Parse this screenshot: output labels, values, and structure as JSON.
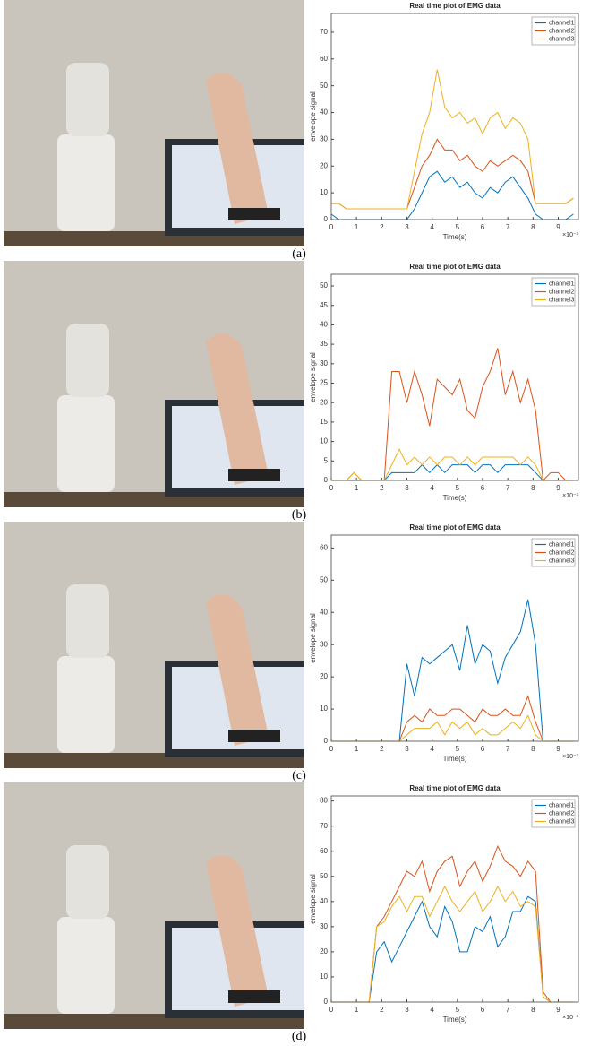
{
  "captions": [
    "(a)",
    "(b)",
    "(c)",
    "(d)"
  ],
  "chart_data": [
    {
      "type": "line",
      "title": "Real time plot of EMG data",
      "x_label": "Time(s)",
      "y_label": "envelope signal",
      "x_multiplier_label": "×10⁻³",
      "x": [
        0,
        0.3,
        0.6,
        0.9,
        1.2,
        1.5,
        1.8,
        2.1,
        2.4,
        2.7,
        3.0,
        3.3,
        3.6,
        3.9,
        4.2,
        4.5,
        4.8,
        5.1,
        5.4,
        5.7,
        6.0,
        6.3,
        6.6,
        6.9,
        7.2,
        7.5,
        7.8,
        8.1,
        8.4,
        8.7,
        9.0,
        9.3,
        9.6
      ],
      "xlim": [
        0,
        9.8
      ],
      "xticks": [
        0,
        1,
        2,
        3,
        4,
        5,
        6,
        7,
        8,
        9
      ],
      "ylim": [
        0,
        77
      ],
      "yticks": [
        0,
        10,
        20,
        30,
        40,
        50,
        60,
        70
      ],
      "legend": "top-right",
      "series": [
        {
          "name": "channel1",
          "color": "#0072bd",
          "values": [
            2,
            0,
            0,
            0,
            0,
            0,
            0,
            0,
            0,
            0,
            0,
            4,
            10,
            16,
            18,
            14,
            16,
            12,
            14,
            10,
            8,
            12,
            10,
            14,
            16,
            12,
            8,
            2,
            0,
            0,
            0,
            0,
            2
          ]
        },
        {
          "name": "channel2",
          "color": "#d95319",
          "values": [
            6,
            6,
            4,
            4,
            4,
            4,
            4,
            4,
            4,
            4,
            4,
            12,
            20,
            24,
            30,
            26,
            26,
            22,
            24,
            20,
            18,
            22,
            20,
            22,
            24,
            22,
            18,
            6,
            6,
            6,
            6,
            6,
            8
          ]
        },
        {
          "name": "channel3",
          "color": "#edb120",
          "values": [
            6,
            6,
            4,
            4,
            4,
            4,
            4,
            4,
            4,
            4,
            4,
            18,
            32,
            40,
            56,
            42,
            38,
            40,
            36,
            38,
            32,
            38,
            40,
            34,
            38,
            36,
            30,
            6,
            6,
            6,
            6,
            6,
            8
          ]
        }
      ]
    },
    {
      "type": "line",
      "title": "Real time plot of EMG data",
      "x_label": "Time(s)",
      "y_label": "envelope signal",
      "x_multiplier_label": "×10⁻³",
      "x": [
        0,
        0.3,
        0.6,
        0.9,
        1.2,
        1.5,
        1.8,
        2.1,
        2.4,
        2.7,
        3.0,
        3.3,
        3.6,
        3.9,
        4.2,
        4.5,
        4.8,
        5.1,
        5.4,
        5.7,
        6.0,
        6.3,
        6.6,
        6.9,
        7.2,
        7.5,
        7.8,
        8.1,
        8.4,
        8.7,
        9.0,
        9.3,
        9.6
      ],
      "xlim": [
        0,
        9.8
      ],
      "xticks": [
        0,
        1,
        2,
        3,
        4,
        5,
        6,
        7,
        8,
        9
      ],
      "ylim": [
        0,
        53
      ],
      "yticks": [
        0,
        5,
        10,
        15,
        20,
        25,
        30,
        35,
        40,
        45,
        50
      ],
      "legend": "top-right",
      "series": [
        {
          "name": "channel1",
          "color": "#0072bd",
          "values": [
            0,
            0,
            0,
            0,
            0,
            0,
            0,
            0,
            2,
            2,
            2,
            2,
            4,
            2,
            4,
            2,
            4,
            4,
            4,
            2,
            4,
            4,
            2,
            4,
            4,
            4,
            4,
            2,
            0,
            0,
            0,
            0,
            0
          ]
        },
        {
          "name": "channel2",
          "color": "#d95319",
          "values": [
            0,
            0,
            0,
            2,
            0,
            0,
            0,
            0,
            28,
            28,
            20,
            28,
            22,
            14,
            26,
            24,
            22,
            26,
            18,
            16,
            24,
            28,
            34,
            22,
            28,
            20,
            26,
            18,
            0,
            2,
            2,
            0,
            0
          ]
        },
        {
          "name": "channel3",
          "color": "#edb120",
          "values": [
            0,
            0,
            0,
            2,
            0,
            0,
            0,
            0,
            4,
            8,
            4,
            6,
            4,
            6,
            4,
            6,
            6,
            4,
            6,
            4,
            6,
            6,
            6,
            6,
            6,
            4,
            6,
            4,
            0,
            0,
            0,
            0,
            0
          ]
        }
      ]
    },
    {
      "type": "line",
      "title": "Real time plot of EMG data",
      "x_label": "Time(s)",
      "y_label": "envelope signal",
      "x_multiplier_label": "×10⁻³",
      "x": [
        0,
        0.3,
        0.6,
        0.9,
        1.2,
        1.5,
        1.8,
        2.1,
        2.4,
        2.7,
        3.0,
        3.3,
        3.6,
        3.9,
        4.2,
        4.5,
        4.8,
        5.1,
        5.4,
        5.7,
        6.0,
        6.3,
        6.6,
        6.9,
        7.2,
        7.5,
        7.8,
        8.1,
        8.4,
        8.7,
        9.0,
        9.3,
        9.6
      ],
      "xlim": [
        0,
        9.8
      ],
      "xticks": [
        0,
        1,
        2,
        3,
        4,
        5,
        6,
        7,
        8,
        9
      ],
      "ylim": [
        0,
        64
      ],
      "yticks": [
        0,
        10,
        20,
        30,
        40,
        50,
        60
      ],
      "legend": "top-right",
      "series": [
        {
          "name": "channel1",
          "color": "#0072bd",
          "values": [
            0,
            0,
            0,
            0,
            0,
            0,
            0,
            0,
            0,
            0,
            24,
            14,
            26,
            24,
            26,
            28,
            30,
            22,
            36,
            24,
            30,
            28,
            18,
            26,
            30,
            34,
            44,
            30,
            0,
            0,
            0,
            0,
            0
          ]
        },
        {
          "name": "channel2",
          "color": "#d95319",
          "values": [
            0,
            0,
            0,
            0,
            0,
            0,
            0,
            0,
            0,
            0,
            6,
            8,
            6,
            10,
            8,
            8,
            10,
            10,
            8,
            6,
            10,
            8,
            8,
            10,
            8,
            8,
            14,
            6,
            0,
            0,
            0,
            0,
            0
          ]
        },
        {
          "name": "channel3",
          "color": "#edb120",
          "values": [
            0,
            0,
            0,
            0,
            0,
            0,
            0,
            0,
            0,
            0,
            2,
            4,
            4,
            4,
            6,
            2,
            6,
            4,
            6,
            2,
            4,
            2,
            2,
            4,
            6,
            4,
            8,
            2,
            0,
            0,
            0,
            0,
            0
          ]
        }
      ]
    },
    {
      "type": "line",
      "title": "Real time plot of EMG data",
      "x_label": "Time(s)",
      "y_label": "envelope signal",
      "x_multiplier_label": "×10⁻³",
      "x": [
        0,
        0.3,
        0.6,
        0.9,
        1.2,
        1.5,
        1.8,
        2.1,
        2.4,
        2.7,
        3.0,
        3.3,
        3.6,
        3.9,
        4.2,
        4.5,
        4.8,
        5.1,
        5.4,
        5.7,
        6.0,
        6.3,
        6.6,
        6.9,
        7.2,
        7.5,
        7.8,
        8.1,
        8.4,
        8.7,
        9.0,
        9.3,
        9.6
      ],
      "xlim": [
        0,
        9.8
      ],
      "xticks": [
        0,
        1,
        2,
        3,
        4,
        5,
        6,
        7,
        8,
        9
      ],
      "ylim": [
        0,
        82
      ],
      "yticks": [
        0,
        10,
        20,
        30,
        40,
        50,
        60,
        70,
        80
      ],
      "legend": "top-right",
      "series": [
        {
          "name": "channel1",
          "color": "#0072bd",
          "values": [
            0,
            0,
            0,
            0,
            0,
            0,
            20,
            24,
            16,
            22,
            28,
            34,
            40,
            30,
            26,
            38,
            32,
            20,
            20,
            30,
            28,
            34,
            22,
            26,
            36,
            36,
            42,
            40,
            2,
            0,
            0,
            0,
            0
          ]
        },
        {
          "name": "channel2",
          "color": "#d95319",
          "values": [
            0,
            0,
            0,
            0,
            0,
            0,
            30,
            34,
            40,
            46,
            52,
            50,
            56,
            44,
            52,
            56,
            58,
            46,
            52,
            56,
            48,
            54,
            62,
            56,
            54,
            50,
            56,
            52,
            4,
            0,
            0,
            0,
            0
          ]
        },
        {
          "name": "channel3",
          "color": "#edb120",
          "values": [
            0,
            0,
            0,
            0,
            0,
            0,
            30,
            32,
            38,
            42,
            36,
            42,
            42,
            34,
            40,
            46,
            40,
            36,
            40,
            44,
            36,
            40,
            46,
            40,
            44,
            38,
            40,
            38,
            2,
            0,
            0,
            0,
            0
          ]
        }
      ]
    }
  ]
}
